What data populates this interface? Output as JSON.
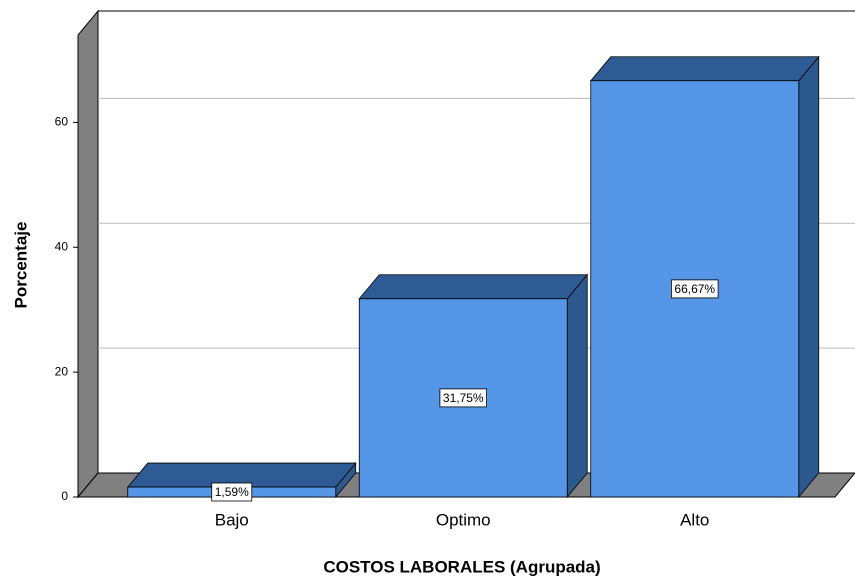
{
  "chart_data": {
    "type": "bar3d",
    "x_label": "COSTOS LABORALES (Agrupada)",
    "y_label": "Porcentaje",
    "categories": [
      "Bajo",
      "Optimo",
      "Alto"
    ],
    "values": [
      1.59,
      31.75,
      66.67
    ],
    "value_labels": [
      "1,59%",
      "31,75%",
      "66,67%"
    ],
    "color": "#5596e6",
    "ylim": [
      0,
      74
    ],
    "yticks": [
      0,
      20,
      40,
      60
    ],
    "grid": true
  }
}
